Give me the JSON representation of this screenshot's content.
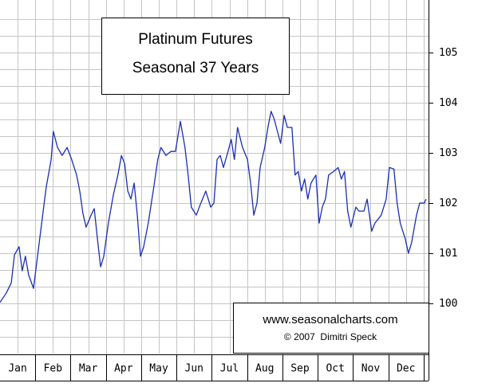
{
  "chart_data": {
    "type": "line",
    "title": "Platinum Futures",
    "subtitle": "Seasonal 37 Years",
    "annotations": [
      "www.seasonalcharts.com",
      "© 2007  Dimitri Speck"
    ],
    "xlim": [
      0,
      12.14
    ],
    "xticks": [
      {
        "value": 0.5,
        "label": "Jan"
      },
      {
        "value": 1.5,
        "label": "Feb"
      },
      {
        "value": 2.5,
        "label": "Mar"
      },
      {
        "value": 3.5,
        "label": "Apr"
      },
      {
        "value": 4.5,
        "label": "May"
      },
      {
        "value": 5.5,
        "label": "Jun"
      },
      {
        "value": 6.5,
        "label": "Jul"
      },
      {
        "value": 7.5,
        "label": "Aug"
      },
      {
        "value": 8.5,
        "label": "Sep"
      },
      {
        "value": 9.5,
        "label": "Oct"
      },
      {
        "value": 10.5,
        "label": "Nov"
      },
      {
        "value": 11.5,
        "label": "Dec"
      }
    ],
    "ylim": [
      99,
      106.05
    ],
    "yticks": [
      100,
      101,
      102,
      103,
      104,
      105
    ],
    "grid": true,
    "series": [
      {
        "color": "#1a2fb0",
        "x": [
          0,
          0.18,
          0.32,
          0.41,
          0.54,
          0.63,
          0.72,
          0.81,
          0.95,
          1.04,
          1.18,
          1.31,
          1.45,
          1.51,
          1.63,
          1.76,
          1.9,
          2.03,
          2.17,
          2.26,
          2.35,
          2.44,
          2.58,
          2.67,
          2.76,
          2.85,
          2.94,
          3.07,
          3.21,
          3.34,
          3.44,
          3.53,
          3.62,
          3.71,
          3.8,
          3.89,
          3.98,
          4.07,
          4.2,
          4.34,
          4.47,
          4.56,
          4.7,
          4.84,
          4.97,
          5.11,
          5.24,
          5.33,
          5.42,
          5.56,
          5.69,
          5.83,
          5.97,
          6.06,
          6.15,
          6.24,
          6.33,
          6.46,
          6.55,
          6.64,
          6.73,
          6.87,
          7.01,
          7.1,
          7.19,
          7.28,
          7.37,
          7.5,
          7.59,
          7.68,
          7.77,
          7.86,
          7.95,
          8.05,
          8.14,
          8.27,
          8.36,
          8.45,
          8.54,
          8.63,
          8.72,
          8.81,
          8.95,
          9.04,
          9.13,
          9.22,
          9.31,
          9.45,
          9.58,
          9.67,
          9.76,
          9.85,
          9.94,
          10.08,
          10.17,
          10.31,
          10.4,
          10.53,
          10.62,
          10.8,
          10.94,
          11.03,
          11.16,
          11.25,
          11.34,
          11.48,
          11.57,
          11.66,
          11.8,
          11.89,
          12.02,
          12.07
        ],
        "values": [
          100.02,
          100.21,
          100.41,
          100.97,
          101.13,
          100.65,
          100.94,
          100.57,
          100.3,
          100.81,
          101.6,
          102.32,
          102.87,
          103.43,
          103.11,
          102.95,
          103.11,
          102.87,
          102.56,
          102.24,
          101.79,
          101.52,
          101.76,
          101.89,
          101.29,
          100.73,
          100.94,
          101.6,
          102.16,
          102.56,
          102.95,
          102.79,
          102.24,
          102.08,
          102.4,
          101.76,
          100.94,
          101.13,
          101.6,
          102.24,
          102.87,
          103.11,
          102.95,
          103.03,
          103.03,
          103.63,
          103.11,
          102.56,
          101.92,
          101.76,
          102.0,
          102.24,
          101.92,
          102.0,
          102.87,
          102.95,
          102.71,
          103.03,
          103.27,
          102.87,
          103.51,
          103.11,
          102.87,
          102.4,
          101.76,
          102.0,
          102.71,
          103.11,
          103.51,
          103.83,
          103.67,
          103.43,
          103.19,
          103.75,
          103.51,
          103.51,
          102.56,
          102.63,
          102.24,
          102.48,
          102.08,
          102.4,
          102.56,
          101.6,
          101.92,
          102.08,
          102.56,
          102.63,
          102.71,
          102.48,
          102.63,
          101.84,
          101.52,
          101.92,
          101.84,
          101.84,
          102.08,
          101.44,
          101.6,
          101.76,
          102.08,
          102.71,
          102.68,
          102.0,
          101.6,
          101.29,
          101.0,
          101.21,
          101.76,
          102.0,
          102.0,
          102.08
        ]
      }
    ]
  }
}
